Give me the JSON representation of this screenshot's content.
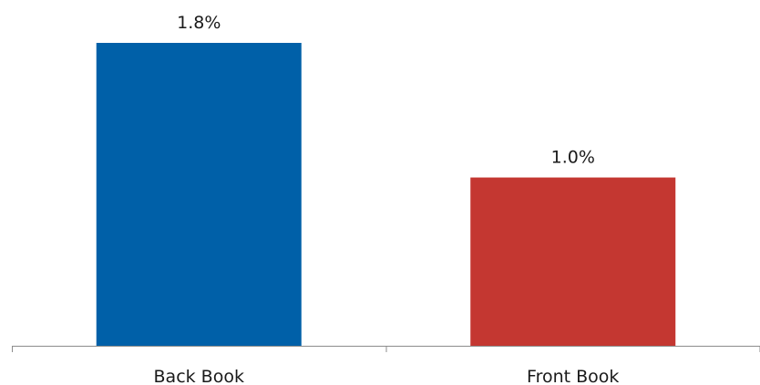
{
  "chart_data": {
    "type": "bar",
    "title": "",
    "xlabel": "",
    "ylabel": "",
    "categories": [
      "Back Book",
      "Front Book"
    ],
    "values": [
      1.8,
      1.0
    ],
    "data_labels": [
      "1.8%",
      "1.0%"
    ],
    "colors": [
      "#0060a8",
      "#c43731"
    ],
    "ylim": [
      0,
      1.8
    ],
    "grid": false,
    "legend": "none"
  }
}
